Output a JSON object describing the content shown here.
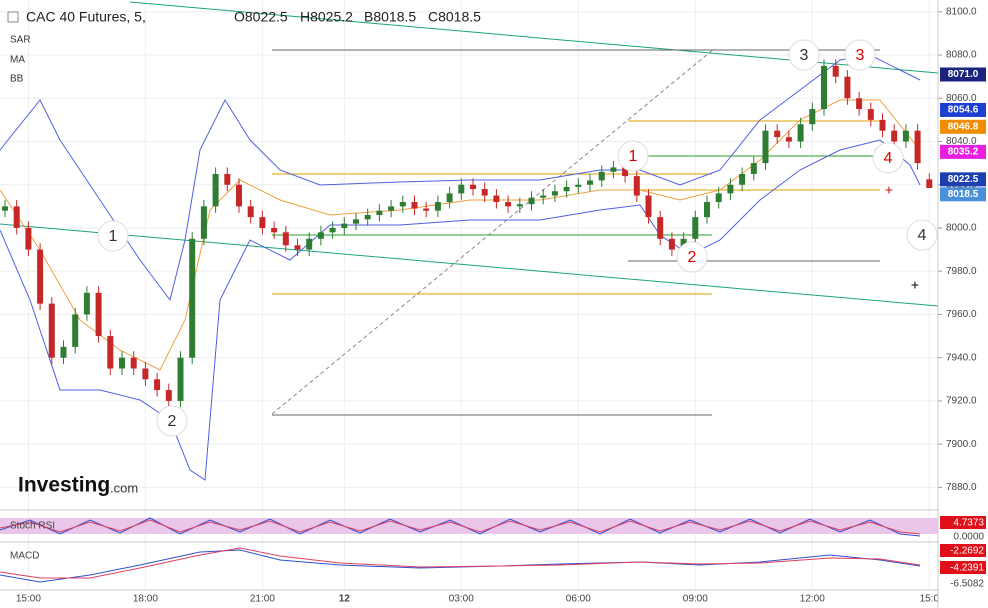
{
  "chart_data": {
    "type": "candlestick",
    "title": "CAC 40 Futures, 5,",
    "ohlc_header": [
      "O8022.5",
      "H8025.2",
      "B8018.5",
      "C8018.5"
    ],
    "indicators": [
      "SAR",
      "MA",
      "BB"
    ],
    "logo": {
      "name": "Investing",
      "suffix": ".com"
    },
    "categories": [
      null,
      null,
      "15:00",
      null,
      null,
      null,
      null,
      null,
      null,
      null,
      null,
      null,
      "18:00",
      null,
      null,
      null,
      null,
      null,
      null,
      null,
      null,
      null,
      "21:00",
      null,
      null,
      null,
      null,
      null,
      null,
      "12",
      null,
      null,
      null,
      null,
      null,
      null,
      null,
      null,
      null,
      "03:00",
      null,
      null,
      null,
      null,
      null,
      null,
      null,
      null,
      null,
      "06:00",
      null,
      null,
      null,
      null,
      null,
      null,
      null,
      null,
      null,
      "09:00",
      null,
      null,
      null,
      null,
      null,
      null,
      null,
      null,
      null,
      "12:00",
      null,
      null,
      null,
      null,
      null,
      null,
      null,
      null,
      null,
      "15:0"
    ],
    "open": [
      8008,
      8010,
      8000,
      7990,
      7965,
      7940,
      7945,
      7960,
      7970,
      7950,
      7935,
      7940,
      7935,
      7930,
      7925,
      7920,
      7940,
      7995,
      8010,
      8025,
      8020,
      8010,
      8005,
      8000,
      7998,
      7992,
      7990,
      7995,
      7998,
      8000,
      8002,
      8004,
      8006,
      8008,
      8010,
      8012,
      8009,
      8008,
      8012,
      8016,
      8020,
      8018,
      8015,
      8012,
      8010,
      8011,
      8014,
      8015,
      8017,
      8019,
      8020,
      8022,
      8026,
      8028,
      8024,
      8015,
      8005,
      7995,
      7990,
      7995,
      8005,
      8012,
      8016,
      8020,
      8025,
      8030,
      8045,
      8042,
      8040,
      8048,
      8055,
      8075,
      8070,
      8060,
      8055,
      8050,
      8045,
      8040,
      8045,
      8022.5
    ],
    "high": [
      8013,
      8013,
      8003,
      7993,
      7968,
      7948,
      7963,
      7973,
      7973,
      7953,
      7943,
      7943,
      7938,
      7933,
      7928,
      7943,
      7998,
      8013,
      8028,
      8028,
      8023,
      8013,
      8008,
      8003,
      8001,
      7995,
      7998,
      8001,
      8003,
      8005,
      8007,
      8009,
      8011,
      8013,
      8015,
      8015,
      8012,
      8015,
      8019,
      8023,
      8023,
      8021,
      8018,
      8015,
      8014,
      8017,
      8018,
      8020,
      8022,
      8023,
      8025,
      8029,
      8031,
      8031,
      8027,
      8018,
      8008,
      7998,
      7998,
      8008,
      8015,
      8019,
      8023,
      8028,
      8033,
      8048,
      8048,
      8045,
      8051,
      8058,
      8078,
      8078,
      8073,
      8063,
      8058,
      8053,
      8048,
      8048,
      8048,
      8025.2
    ],
    "low": [
      8005,
      7997,
      7987,
      7962,
      7937,
      7937,
      7942,
      7957,
      7947,
      7932,
      7932,
      7932,
      7927,
      7922,
      7917,
      7917,
      7937,
      7992,
      8007,
      8017,
      8007,
      8002,
      7997,
      7995,
      7989,
      7987,
      7987,
      7992,
      7995,
      7997,
      7999,
      8001,
      8003,
      8005,
      8007,
      8006,
      8005,
      8005,
      8009,
      8013,
      8015,
      8012,
      8009,
      8007,
      8007,
      8008,
      8011,
      8012,
      8014,
      8016,
      8017,
      8019,
      8023,
      8021,
      8012,
      8002,
      7992,
      7987,
      7987,
      7992,
      8002,
      8009,
      8013,
      8017,
      8022,
      8027,
      8039,
      8037,
      8037,
      8045,
      8052,
      8067,
      8057,
      8052,
      8047,
      8042,
      8037,
      8037,
      8027,
      8018.5
    ],
    "close": [
      8010,
      8000,
      7990,
      7965,
      7940,
      7945,
      7960,
      7970,
      7950,
      7935,
      7940,
      7935,
      7930,
      7925,
      7920,
      7940,
      7995,
      8010,
      8025,
      8020,
      8010,
      8005,
      8000,
      7998,
      7992,
      7990,
      7995,
      7998,
      8000,
      8002,
      8004,
      8006,
      8008,
      8010,
      8012,
      8009,
      8008,
      8012,
      8016,
      8020,
      8018,
      8015,
      8012,
      8010,
      8011,
      8014,
      8015,
      8017,
      8019,
      8020,
      8022,
      8026,
      8028,
      8024,
      8015,
      8005,
      7995,
      7990,
      7995,
      8005,
      8012,
      8016,
      8020,
      8025,
      8030,
      8045,
      8042,
      8040,
      8048,
      8055,
      8075,
      8070,
      8060,
      8055,
      8050,
      8045,
      8040,
      8045,
      8030,
      8018.5
    ],
    "up_color": "#2e7d32",
    "down_color": "#c62828",
    "ylim": [
      7870,
      8105
    ],
    "yticks": [
      {
        "value": 7880,
        "label": "7880.0"
      },
      {
        "value": 7900,
        "label": "7900.0"
      },
      {
        "value": 7920,
        "label": "7920.0"
      },
      {
        "value": 7940,
        "label": "7940.0"
      },
      {
        "value": 7960,
        "label": "7960.0"
      },
      {
        "value": 7980,
        "label": "7980.0"
      },
      {
        "value": 8000,
        "label": "8000.0"
      },
      {
        "value": 8020,
        "label": "8020.0"
      },
      {
        "value": 8040,
        "label": "8040.0"
      },
      {
        "value": 8060,
        "label": "8060.0"
      },
      {
        "value": 8080,
        "label": "8080.0"
      },
      {
        "value": 8100,
        "label": "8100.0"
      }
    ],
    "grid": true,
    "price_tags": [
      {
        "value": 8071,
        "label": "8071.0",
        "color": "#1a237e"
      },
      {
        "value": 8054.6,
        "label": "8054.6",
        "color": "#1e3fd0"
      },
      {
        "value": 8046.8,
        "label": "8046.8",
        "color": "#f08c00"
      },
      {
        "value": 8035.2,
        "label": "8035.2",
        "color": "#e91ee0"
      },
      {
        "value": 8022.5,
        "label": "8022.5",
        "color": "#1e3fb0"
      },
      {
        "value": 8018.5,
        "label": "8018.5",
        "color": "#4a90d9"
      }
    ],
    "waves": [
      "1",
      "2",
      "3",
      "4",
      "1",
      "2",
      "3",
      "4"
    ],
    "stoch_rsi": {
      "name": "Stoch RSI",
      "labels": [
        "4.7373",
        "0.0000"
      ]
    },
    "macd": {
      "name": "MACD",
      "labels": [
        "-2.2692",
        "-4.2391",
        "-6.5082"
      ]
    }
  }
}
